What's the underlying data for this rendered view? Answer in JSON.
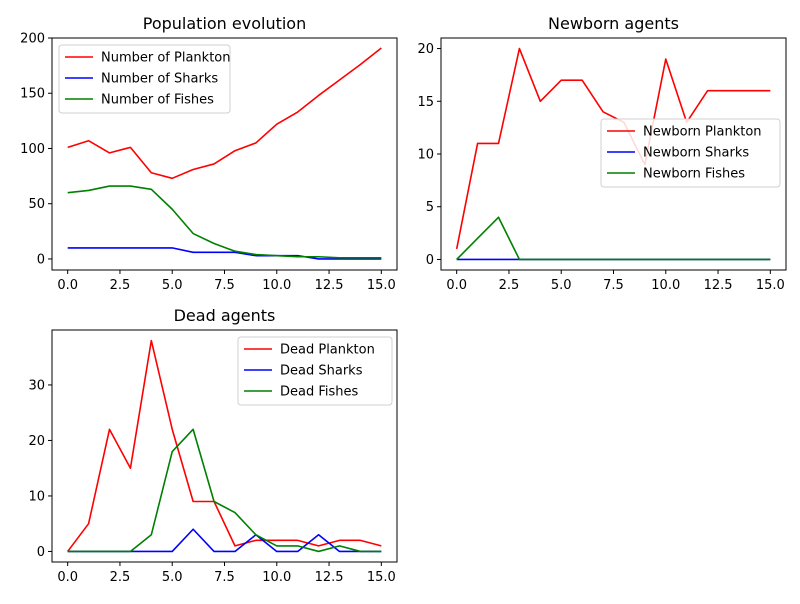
{
  "chart_data": [
    {
      "type": "line",
      "title": "Population evolution",
      "x": [
        0,
        1,
        2,
        3,
        4,
        5,
        6,
        7,
        8,
        9,
        10,
        11,
        12,
        13,
        14,
        15
      ],
      "xlim": [
        -0.75,
        15.75
      ],
      "ylim": [
        -10,
        200
      ],
      "xticks": [
        0,
        2.5,
        5,
        7.5,
        10,
        12.5,
        15
      ],
      "xtick_labels": [
        "0.0",
        "2.5",
        "5.0",
        "7.5",
        "10.0",
        "12.5",
        "15.0"
      ],
      "yticks": [
        0,
        50,
        100,
        150,
        200
      ],
      "ytick_labels": [
        "0",
        "50",
        "100",
        "150",
        "200"
      ],
      "legend_position": "upper-left",
      "series": [
        {
          "name": "Number of Plankton",
          "color": "#ff0000",
          "values": [
            101,
            107,
            96,
            101,
            78,
            73,
            81,
            86,
            98,
            105,
            122,
            133,
            148,
            162,
            176,
            191
          ]
        },
        {
          "name": "Number of Sharks",
          "color": "#0000ff",
          "values": [
            10,
            10,
            10,
            10,
            10,
            10,
            6,
            6,
            6,
            3,
            3,
            3,
            0,
            0,
            0,
            0
          ]
        },
        {
          "name": "Number of Fishes",
          "color": "#008000",
          "values": [
            60,
            62,
            66,
            66,
            63,
            45,
            23,
            14,
            7,
            4,
            3,
            2,
            2,
            1,
            1,
            1
          ]
        }
      ]
    },
    {
      "type": "line",
      "title": "Newborn agents",
      "x": [
        0,
        1,
        2,
        3,
        4,
        5,
        6,
        7,
        8,
        9,
        10,
        11,
        12,
        13,
        14,
        15
      ],
      "xlim": [
        -0.75,
        15.75
      ],
      "ylim": [
        -1,
        21
      ],
      "xticks": [
        0,
        2.5,
        5,
        7.5,
        10,
        12.5,
        15
      ],
      "xtick_labels": [
        "0.0",
        "2.5",
        "5.0",
        "7.5",
        "10.0",
        "12.5",
        "15.0"
      ],
      "yticks": [
        0,
        5,
        10,
        15,
        20
      ],
      "ytick_labels": [
        "0",
        "5",
        "10",
        "15",
        "20"
      ],
      "legend_position": "center-right",
      "series": [
        {
          "name": "Newborn Plankton",
          "color": "#ff0000",
          "values": [
            1,
            11,
            11,
            20,
            15,
            17,
            17,
            14,
            13,
            9,
            19,
            13,
            16,
            16,
            16,
            16
          ]
        },
        {
          "name": "Newborn Sharks",
          "color": "#0000ff",
          "values": [
            0,
            0,
            0,
            0,
            0,
            0,
            0,
            0,
            0,
            0,
            0,
            0,
            0,
            0,
            0,
            0
          ]
        },
        {
          "name": "Newborn Fishes",
          "color": "#008000",
          "values": [
            0,
            2,
            4,
            0,
            0,
            0,
            0,
            0,
            0,
            0,
            0,
            0,
            0,
            0,
            0,
            0
          ]
        }
      ]
    },
    {
      "type": "line",
      "title": "Dead agents",
      "x": [
        0,
        1,
        2,
        3,
        4,
        5,
        6,
        7,
        8,
        9,
        10,
        11,
        12,
        13,
        14,
        15
      ],
      "xlim": [
        -0.75,
        15.75
      ],
      "ylim": [
        -1.9,
        39.9
      ],
      "xticks": [
        0,
        2.5,
        5,
        7.5,
        10,
        12.5,
        15
      ],
      "xtick_labels": [
        "0.0",
        "2.5",
        "5.0",
        "7.5",
        "10.0",
        "12.5",
        "15.0"
      ],
      "yticks": [
        0,
        10,
        20,
        30
      ],
      "ytick_labels": [
        "0",
        "10",
        "20",
        "30"
      ],
      "legend_position": "upper-right",
      "series": [
        {
          "name": "Dead Plankton",
          "color": "#ff0000",
          "values": [
            0,
            5,
            22,
            15,
            38,
            22,
            9,
            9,
            1,
            2,
            2,
            2,
            1,
            2,
            2,
            1
          ]
        },
        {
          "name": "Dead Sharks",
          "color": "#0000ff",
          "values": [
            0,
            0,
            0,
            0,
            0,
            0,
            4,
            0,
            0,
            3,
            0,
            0,
            3,
            0,
            0,
            0
          ]
        },
        {
          "name": "Dead Fishes",
          "color": "#008000",
          "values": [
            0,
            0,
            0,
            0,
            3,
            18,
            22,
            9,
            7,
            3,
            1,
            1,
            0,
            1,
            0,
            0
          ]
        }
      ]
    }
  ]
}
